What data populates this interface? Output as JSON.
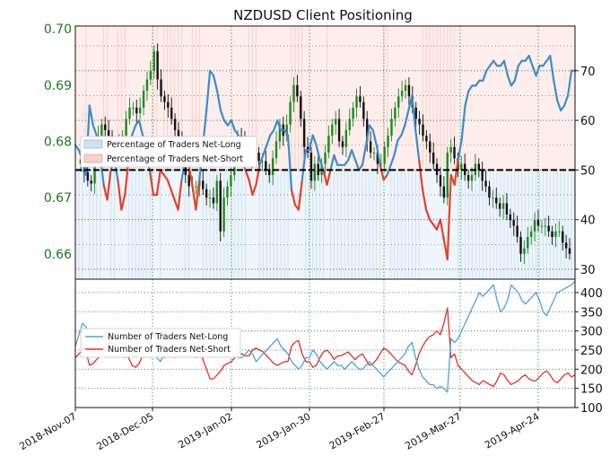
{
  "chart_data": {
    "title": "NZDUSD Client Positioning",
    "x_dates": [
      "2018-Nov-07",
      "2018-Dec-05",
      "2019-Jan-02",
      "2019-Jan-30",
      "2019-Feb-27",
      "2019-Mar-27",
      "2019-Apr-24"
    ],
    "top_panel": {
      "type": "line",
      "left_axis": {
        "ticks": [
          "0.70",
          "0.69",
          "0.68",
          "0.67",
          "0.66"
        ],
        "ylim": [
          0.6555,
          0.7005
        ]
      },
      "right_axis": {
        "ticks": [
          "70",
          "60",
          "50",
          "40",
          "30"
        ],
        "ylim": [
          28,
          79
        ]
      },
      "midline": 50,
      "legend": [
        "Percentage of Traders Net-Long",
        "Percentage of Traders Net-Short"
      ],
      "colors": {
        "long": "#3d8ccc",
        "short": "#e5402a",
        "long_fill": "#cfe2f3",
        "short_fill": "#f8d0cc"
      },
      "percent_long": [
        55,
        54,
        52,
        49,
        63,
        59,
        57,
        53,
        47,
        44,
        50,
        52,
        48,
        42,
        45,
        52,
        57,
        59,
        60,
        57,
        52,
        50,
        45,
        45,
        50,
        49,
        48,
        46,
        44,
        42,
        48,
        52,
        51,
        47,
        42,
        48,
        55,
        62,
        70,
        69,
        66,
        62,
        60,
        59,
        60,
        58,
        57,
        52,
        50,
        48,
        45,
        47,
        51,
        53,
        55,
        57,
        58,
        60,
        58,
        58,
        57,
        46,
        43,
        42,
        48,
        54,
        54,
        57,
        55,
        52,
        50,
        47,
        50,
        53,
        51,
        51,
        51,
        52,
        54,
        52,
        50,
        51,
        55,
        59,
        58,
        55,
        51,
        48,
        49,
        51,
        53,
        56,
        57,
        59,
        62,
        65,
        58,
        52,
        46,
        42,
        40,
        39,
        38,
        40,
        36,
        32,
        49,
        47,
        52,
        56,
        63,
        66,
        67,
        67,
        68,
        68,
        70,
        71,
        72,
        71,
        71,
        72,
        69,
        67,
        68,
        71,
        72,
        72,
        73,
        71,
        69,
        71,
        71,
        72,
        73,
        68,
        64,
        62,
        63,
        65,
        70,
        70
      ],
      "price_closes": [
        0.676,
        0.6745,
        0.673,
        0.6725,
        0.678,
        0.681,
        0.683,
        0.682,
        0.681,
        0.679,
        0.679,
        0.6795,
        0.681,
        0.684,
        0.686,
        0.686,
        0.685,
        0.686,
        0.689,
        0.691,
        0.6925,
        0.696,
        0.691,
        0.688,
        0.687,
        0.686,
        0.684,
        0.682,
        0.68,
        0.679,
        0.674,
        0.672,
        0.672,
        0.672,
        0.673,
        0.6715,
        0.67,
        0.67,
        0.669,
        0.673,
        0.664,
        0.67,
        0.672,
        0.674,
        0.679,
        0.681,
        0.68,
        0.679,
        0.678,
        0.677,
        0.678,
        0.6765,
        0.6765,
        0.675,
        0.674,
        0.677,
        0.68,
        0.683,
        0.681,
        0.683,
        0.687,
        0.69,
        0.688,
        0.684,
        0.679,
        0.678,
        0.673,
        0.676,
        0.674,
        0.676,
        0.678,
        0.681,
        0.683,
        0.684,
        0.68,
        0.679,
        0.682,
        0.684,
        0.686,
        0.688,
        0.687,
        0.684,
        0.68,
        0.678,
        0.678,
        0.676,
        0.676,
        0.679,
        0.681,
        0.684,
        0.686,
        0.688,
        0.689,
        0.69,
        0.688,
        0.686,
        0.684,
        0.683,
        0.681,
        0.68,
        0.678,
        0.676,
        0.674,
        0.672,
        0.67,
        0.678,
        0.679,
        0.677,
        0.675,
        0.676,
        0.674,
        0.673,
        0.674,
        0.676,
        0.675,
        0.673,
        0.672,
        0.67,
        0.67,
        0.669,
        0.668,
        0.669,
        0.667,
        0.666,
        0.665,
        0.663,
        0.66,
        0.661,
        0.663,
        0.664,
        0.666,
        0.665,
        0.665,
        0.665,
        0.664,
        0.663,
        0.664,
        0.664,
        0.662,
        0.661,
        0.66
      ]
    },
    "bottom_panel": {
      "type": "line",
      "right_axis": {
        "ticks": [
          "400",
          "350",
          "300",
          "250",
          "200",
          "150",
          "100"
        ],
        "ylim": [
          100,
          435
        ]
      },
      "legend": [
        "Number of Traders Net-Long",
        "Number of Traders Net-Short"
      ],
      "colors": {
        "long": "#4da0e0",
        "short": "#e5302a"
      },
      "num_long": [
        260,
        290,
        320,
        310,
        295,
        280,
        270,
        300,
        290,
        260,
        250,
        250,
        240,
        240,
        230,
        240,
        250,
        260,
        270,
        280,
        270,
        260,
        240,
        230,
        220,
        240,
        250,
        240,
        230,
        240,
        250,
        260,
        270,
        250,
        230,
        240,
        260,
        270,
        290,
        300,
        290,
        280,
        270,
        260,
        250,
        240,
        230,
        230,
        240,
        250,
        240,
        220,
        230,
        240,
        250,
        260,
        270,
        280,
        260,
        250,
        240,
        220,
        210,
        200,
        210,
        230,
        230,
        250,
        240,
        220,
        210,
        200,
        210,
        220,
        210,
        210,
        200,
        210,
        220,
        210,
        200,
        200,
        210,
        220,
        210,
        200,
        190,
        180,
        190,
        200,
        210,
        220,
        230,
        240,
        260,
        270,
        230,
        200,
        180,
        170,
        160,
        160,
        150,
        155,
        150,
        140,
        280,
        270,
        280,
        300,
        320,
        340,
        360,
        380,
        400,
        390,
        400,
        410,
        420,
        380,
        350,
        360,
        380,
        420,
        410,
        400,
        380,
        370,
        380,
        390,
        400,
        380,
        350,
        340,
        360,
        380,
        400,
        405,
        410,
        415,
        420,
        430
      ],
      "num_short": [
        230,
        240,
        250,
        245,
        210,
        215,
        225,
        235,
        260,
        280,
        255,
        240,
        245,
        260,
        255,
        230,
        210,
        205,
        215,
        235,
        245,
        255,
        270,
        275,
        240,
        230,
        235,
        240,
        250,
        255,
        245,
        250,
        240,
        250,
        260,
        250,
        225,
        200,
        175,
        175,
        185,
        195,
        210,
        215,
        220,
        230,
        240,
        240,
        235,
        235,
        250,
        255,
        250,
        245,
        235,
        225,
        215,
        210,
        215,
        220,
        220,
        260,
        270,
        275,
        240,
        220,
        220,
        205,
        210,
        230,
        245,
        250,
        240,
        225,
        235,
        235,
        240,
        245,
        235,
        225,
        235,
        240,
        225,
        210,
        215,
        225,
        240,
        255,
        250,
        240,
        230,
        220,
        215,
        210,
        195,
        185,
        210,
        240,
        260,
        275,
        285,
        290,
        300,
        290,
        320,
        360,
        230,
        240,
        210,
        200,
        190,
        180,
        170,
        165,
        160,
        170,
        165,
        160,
        155,
        170,
        190,
        185,
        170,
        160,
        165,
        170,
        180,
        185,
        175,
        170,
        170,
        180,
        190,
        195,
        185,
        170,
        165,
        175,
        185,
        190,
        180,
        185
      ]
    }
  }
}
